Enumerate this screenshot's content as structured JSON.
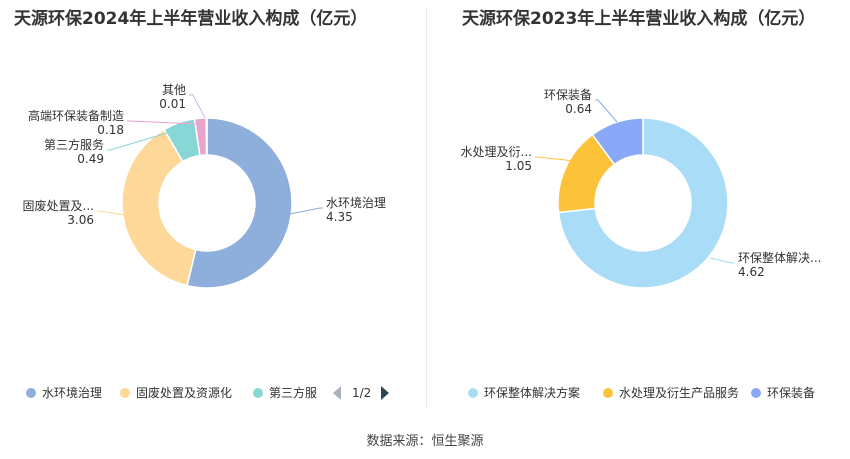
{
  "chart_data": [
    {
      "type": "pie",
      "title": "天源环保2024年上半年营业收入构成（亿元）",
      "categories": [
        "水环境治理",
        "固废处置及资源化",
        "第三方服务",
        "高端环保装备制造",
        "其他"
      ],
      "slice_labels": [
        "水环境治理",
        "固废处置及...",
        "第三方服务",
        "高端环保装备制造",
        "其他"
      ],
      "values": [
        4.35,
        3.06,
        0.49,
        0.18,
        0.01
      ],
      "value_labels": [
        "4.35",
        "3.06",
        "0.49",
        "0.18",
        "0.01"
      ],
      "colors": [
        "#8eaedb",
        "#fed898",
        "#89d6d6",
        "#eaa3cc",
        "#c6b7e8"
      ],
      "legend": {
        "position": "bottom",
        "items": [
          "水环境治理",
          "固废处置及资源化",
          "第三方服"
        ],
        "page": "1/2"
      }
    },
    {
      "type": "pie",
      "title": "天源环保2023年上半年营业收入构成（亿元）",
      "categories": [
        "环保整体解决方案",
        "水处理及衍生产品服务",
        "环保装备"
      ],
      "slice_labels": [
        "环保整体解决...",
        "水处理及衍...",
        "环保装备"
      ],
      "values": [
        4.62,
        1.05,
        0.64
      ],
      "value_labels": [
        "4.62",
        "1.05",
        "0.64"
      ],
      "colors": [
        "#a8dcf7",
        "#fcc33a",
        "#89a8f8"
      ],
      "legend": {
        "position": "bottom",
        "items": [
          "环保整体解决方案",
          "水处理及衍生产品服务",
          "环保装备"
        ]
      }
    }
  ],
  "footer": {
    "source": "数据来源：恒生聚源"
  }
}
